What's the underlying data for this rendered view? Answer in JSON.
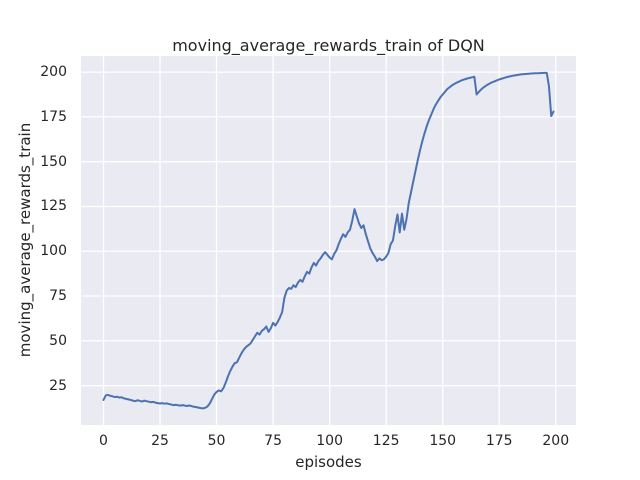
{
  "chart_data": {
    "type": "line",
    "title": "moving_average_rewards_train of DQN",
    "xlabel": "episodes",
    "ylabel": "moving_average_rewards_train",
    "x_ticks": [
      0,
      25,
      50,
      75,
      100,
      125,
      150,
      175,
      200
    ],
    "y_ticks": [
      25,
      50,
      75,
      100,
      125,
      150,
      175,
      200
    ],
    "xlim": [
      -9.95,
      208.95
    ],
    "ylim": [
      3.0,
      209.0
    ],
    "grid": true,
    "legend": "none",
    "plot_background": "#eaeaf2",
    "grid_color": "#ffffff",
    "line_color": "#4c72b0",
    "text_color": "#262626",
    "series": [
      {
        "name": "DQN moving average rewards (train)",
        "x": {
          "start": 0,
          "step": 1,
          "count": 200
        },
        "y": [
          17.0,
          19.5,
          19.8,
          19.3,
          19.0,
          18.6,
          18.8,
          18.3,
          18.5,
          17.9,
          17.6,
          17.3,
          17.0,
          16.6,
          16.3,
          16.8,
          16.5,
          16.1,
          16.6,
          16.3,
          16.0,
          15.7,
          15.9,
          15.5,
          15.2,
          15.0,
          15.2,
          14.9,
          15.1,
          14.7,
          14.4,
          14.1,
          14.3,
          14.0,
          13.8,
          14.1,
          13.8,
          13.6,
          13.9,
          13.5,
          13.2,
          13.0,
          12.7,
          12.4,
          12.3,
          12.6,
          13.4,
          15.0,
          17.5,
          20.0,
          21.5,
          22.3,
          21.8,
          23.5,
          26.5,
          30.0,
          33.0,
          35.5,
          37.5,
          38.0,
          40.5,
          43.0,
          45.0,
          46.5,
          47.5,
          48.5,
          50.5,
          52.5,
          54.5,
          53.5,
          55.5,
          56.5,
          58.0,
          55.0,
          57.0,
          60.0,
          58.5,
          60.5,
          63.0,
          66.0,
          74.0,
          78.0,
          79.5,
          79.0,
          81.0,
          80.0,
          82.5,
          84.0,
          83.0,
          86.0,
          88.5,
          87.5,
          91.0,
          93.5,
          92.0,
          94.5,
          96.0,
          98.0,
          99.5,
          98.0,
          96.5,
          95.5,
          98.5,
          100.5,
          104.0,
          107.0,
          109.5,
          108.0,
          110.5,
          112.0,
          117.0,
          123.5,
          119.5,
          115.5,
          113.0,
          114.5,
          109.5,
          105.5,
          101.5,
          99.0,
          97.0,
          94.5,
          96.0,
          95.0,
          95.5,
          97.0,
          99.0,
          104.0,
          106.0,
          114.0,
          120.5,
          110.5,
          121.0,
          112.0,
          118.0,
          127.0,
          133.0,
          139.0,
          145.0,
          151.0,
          156.5,
          161.5,
          166.0,
          170.0,
          173.5,
          176.5,
          179.5,
          182.0,
          184.0,
          186.0,
          187.5,
          189.0,
          190.5,
          191.5,
          192.5,
          193.3,
          194.0,
          194.6,
          195.2,
          195.7,
          196.1,
          196.5,
          196.8,
          197.1,
          197.4,
          187.5,
          189.0,
          190.3,
          191.4,
          192.3,
          193.1,
          193.8,
          194.4,
          194.9,
          195.4,
          195.9,
          196.3,
          196.7,
          197.1,
          197.4,
          197.7,
          198.0,
          198.2,
          198.4,
          198.6,
          198.8,
          198.9,
          199.0,
          199.1,
          199.2,
          199.3,
          199.35,
          199.4,
          199.45,
          199.5,
          199.55,
          199.6,
          192.0,
          175.5,
          178.0
        ]
      }
    ]
  }
}
